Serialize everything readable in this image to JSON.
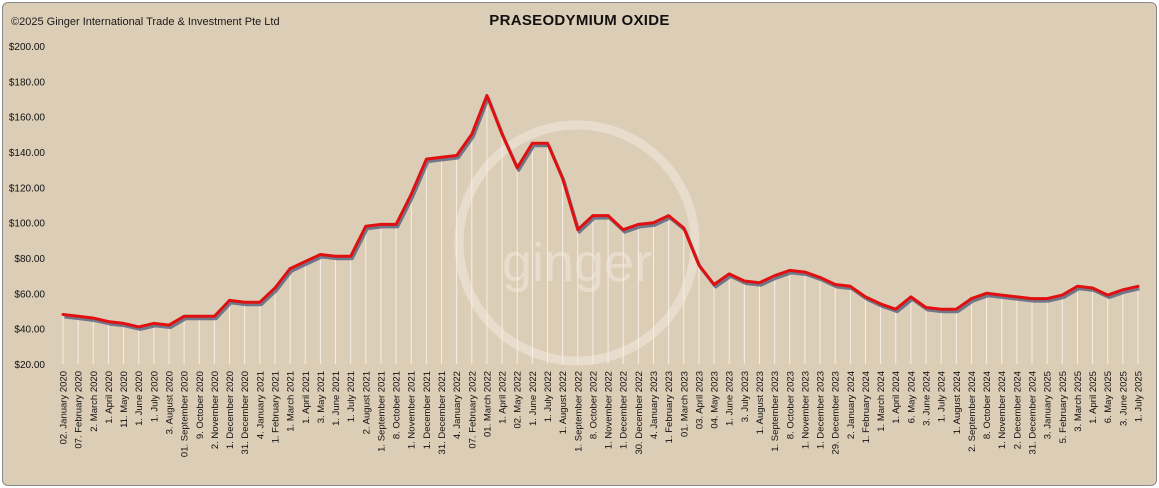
{
  "copyright": "©2025 Ginger International Trade & Investment Pte Ltd",
  "watermark": "ginger",
  "chart_data": {
    "type": "line",
    "title": "PRASEODYMIUM OXIDE",
    "xlabel": "",
    "ylabel": "",
    "ylim": [
      20,
      200
    ],
    "y_ticks": [
      "$20.00",
      "$40.00",
      "$60.00",
      "$80.00",
      "$100.00",
      "$120.00",
      "$140.00",
      "$160.00",
      "$180.00",
      "$200.00"
    ],
    "grid": false,
    "legend": "none",
    "colors": {
      "line": "#e01010",
      "shadow": "#4a5a7a",
      "droplines": "#f5f0e6",
      "background": "#dccdb6"
    },
    "x_tick_labels": [
      "02. January 2020",
      "07. February 2020",
      "2. March 2020",
      "1. April 2020",
      "11. May 2020",
      "1. June 2020",
      "1. July 2020",
      "3. August 2020",
      "01. September 2020",
      "9. October 2020",
      "2. November 2020",
      "1. December 2020",
      "31. December 2020",
      "4. January 2021",
      "1. February 2021",
      "1. March 2021",
      "1. April 2021",
      "3. May 2021",
      "1. June 2021",
      "1. July 2021",
      "2. August 2021",
      "1. September 2021",
      "8. October 2021",
      "1. November 2021",
      "1. December 2021",
      "31. December 2021",
      "4. January 2022",
      "07. February 2022",
      "01. March 2022",
      "1. April 2022",
      "02. May 2022",
      "1. June 2022",
      "1. July 2022",
      "1. August 2022",
      "1. September 2022",
      "8. October 2022",
      "1. November 2022",
      "1. December 2022",
      "30. December 2022",
      "4. January 2023",
      "1. February 2023",
      "01. March 2023",
      "03. April 2023",
      "04. May 2023",
      "1. June 2023",
      "3. July 2023",
      "1. August 2023",
      "1. September 2023",
      "8. October 2023",
      "1. November 2023",
      "1. December 2023",
      "29. December 2023",
      "2. January 2024",
      "1. February 2024",
      "1. March 2024",
      "1. April 2024",
      "6. May 2024",
      "3. June 2024",
      "1. July 2024",
      "1. August 2024",
      "2. September 2024",
      "8. October 2024",
      "1. November 2024",
      "2. December 2024",
      "31. December 2024",
      "3. January 2025",
      "5. February 2025",
      "3. March 2025",
      "1. April 2025",
      "6. May 2025",
      "3. June 2025",
      "1. July 2025"
    ],
    "series": [
      {
        "name": "",
        "values": [
          48,
          47,
          46,
          44,
          43,
          41,
          43,
          42,
          47,
          47,
          47,
          56,
          55,
          55,
          63,
          74,
          78,
          82,
          81,
          81,
          98,
          99,
          99,
          116,
          136,
          137,
          138,
          150,
          172,
          150,
          131,
          145,
          145,
          125,
          96,
          104,
          104,
          96,
          99,
          100,
          104,
          97,
          76,
          65,
          71,
          67,
          66,
          70,
          73,
          72,
          69,
          65,
          64,
          58,
          54,
          51,
          58,
          52,
          51,
          51,
          57,
          60,
          59,
          58,
          57,
          57,
          59,
          64,
          63,
          59,
          62,
          64
        ]
      }
    ]
  }
}
